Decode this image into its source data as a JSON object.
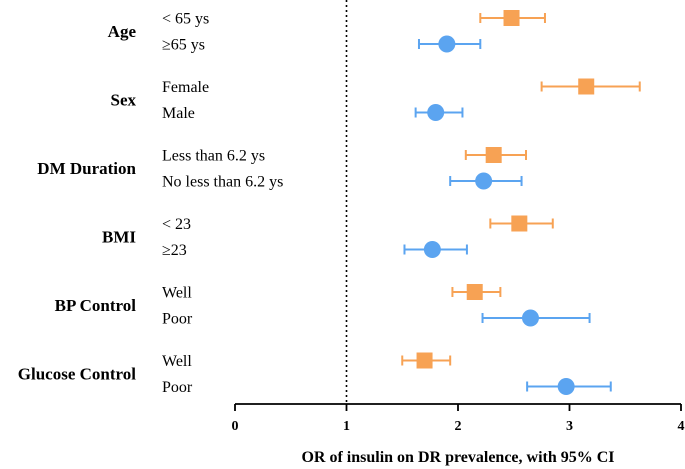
{
  "chart_data": {
    "type": "forest",
    "xlabel": "OR of insulin on DR prevalence, with 95% CI",
    "xlim": [
      0,
      4
    ],
    "xticks": [
      "0",
      "1",
      "2",
      "3",
      "4"
    ],
    "reference_line": 1,
    "colors": {
      "first": "#f7a254",
      "second": "#5ba4f0"
    },
    "groups": [
      {
        "name": "Age",
        "rows": [
          {
            "label": "< 65 ys",
            "or": 2.48,
            "low": 2.2,
            "high": 2.78,
            "marker": "square"
          },
          {
            "label": "≥65 ys",
            "or": 1.9,
            "low": 1.65,
            "high": 2.2,
            "marker": "circle"
          }
        ]
      },
      {
        "name": "Sex",
        "rows": [
          {
            "label": "Female",
            "or": 3.15,
            "low": 2.75,
            "high": 3.63,
            "marker": "square"
          },
          {
            "label": "Male",
            "or": 1.8,
            "low": 1.62,
            "high": 2.04,
            "marker": "circle"
          }
        ]
      },
      {
        "name": "DM Duration",
        "rows": [
          {
            "label": "Less than 6.2 ys",
            "or": 2.32,
            "low": 2.07,
            "high": 2.61,
            "marker": "square"
          },
          {
            "label": "No less than 6.2 ys",
            "or": 2.23,
            "low": 1.93,
            "high": 2.57,
            "marker": "circle"
          }
        ]
      },
      {
        "name": "BMI",
        "rows": [
          {
            "label": "< 23",
            "or": 2.55,
            "low": 2.29,
            "high": 2.85,
            "marker": "square"
          },
          {
            "label": "≥23",
            "or": 1.77,
            "low": 1.52,
            "high": 2.08,
            "marker": "circle"
          }
        ]
      },
      {
        "name": "BP Control",
        "rows": [
          {
            "label": "Well",
            "or": 2.15,
            "low": 1.95,
            "high": 2.38,
            "marker": "square"
          },
          {
            "label": "Poor",
            "or": 2.65,
            "low": 2.22,
            "high": 3.18,
            "marker": "circle"
          }
        ]
      },
      {
        "name": "Glucose Control",
        "rows": [
          {
            "label": "Well",
            "or": 1.7,
            "low": 1.5,
            "high": 1.93,
            "marker": "square"
          },
          {
            "label": "Poor",
            "or": 2.97,
            "low": 2.62,
            "high": 3.37,
            "marker": "circle"
          }
        ]
      }
    ]
  }
}
